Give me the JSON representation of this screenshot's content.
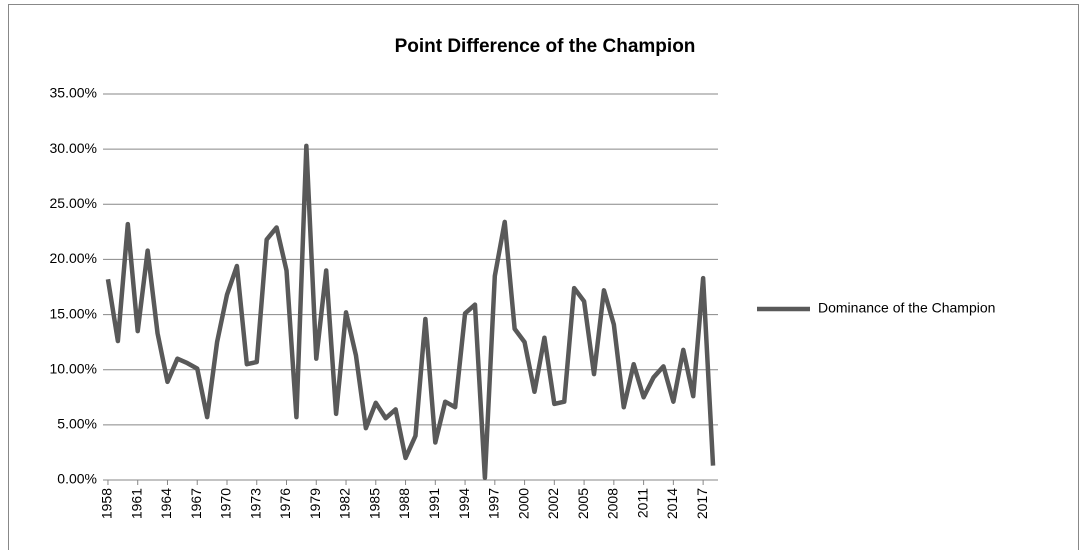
{
  "chart_data": {
    "type": "line",
    "title": "Point Difference of the Champion",
    "categories": [
      "1958",
      null,
      null,
      "1961",
      null,
      null,
      "1964",
      null,
      null,
      "1967",
      null,
      null,
      "1970",
      null,
      null,
      "1973",
      null,
      null,
      "1976",
      null,
      null,
      "1979",
      null,
      null,
      "1982",
      null,
      null,
      "1985",
      null,
      null,
      "1988",
      null,
      null,
      "1991",
      null,
      null,
      "1994",
      null,
      null,
      "1997",
      null,
      null,
      "2000",
      null,
      null,
      "2002",
      null,
      null,
      "2005",
      null,
      null,
      "2008",
      null,
      null,
      "2011",
      null,
      null,
      "2014",
      null,
      null,
      "2017",
      null
    ],
    "series": [
      {
        "name": "Dominance of the Champion",
        "color": "#595959",
        "values": [
          18.2,
          12.6,
          23.2,
          13.5,
          20.8,
          13.3,
          8.9,
          11.0,
          10.6,
          10.1,
          5.7,
          12.5,
          16.8,
          19.4,
          10.5,
          10.7,
          21.8,
          22.9,
          19.0,
          5.7,
          30.3,
          11.0,
          19.0,
          6.0,
          15.2,
          11.3,
          4.7,
          7.0,
          5.6,
          6.4,
          2.0,
          4.0,
          14.6,
          3.4,
          7.1,
          6.6,
          15.1,
          15.9,
          0.2,
          18.5,
          23.4,
          13.7,
          12.5,
          8.0,
          12.9,
          6.9,
          7.1,
          17.4,
          16.2,
          9.6,
          17.2,
          14.1,
          6.6,
          10.5,
          7.5,
          9.3,
          10.3,
          7.1,
          11.8,
          7.6,
          18.3,
          1.3
        ]
      }
    ],
    "ylim": [
      0,
      35
    ],
    "yticks": [
      {
        "value": 0,
        "label": "0.00%"
      },
      {
        "value": 5,
        "label": "5.00%"
      },
      {
        "value": 10,
        "label": "10.00%"
      },
      {
        "value": 15,
        "label": "15.00%"
      },
      {
        "value": 20,
        "label": "20.00%"
      },
      {
        "value": 25,
        "label": "25.00%"
      },
      {
        "value": 30,
        "label": "30.00%"
      },
      {
        "value": 35,
        "label": "35.00%"
      }
    ],
    "grid": true,
    "legend": "right"
  }
}
